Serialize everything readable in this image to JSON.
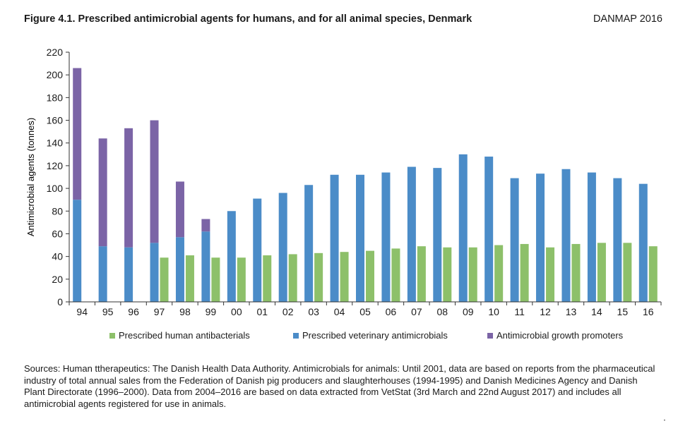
{
  "header": {
    "title": "Figure 4.1. Prescribed antimicrobial agents for humans, and for all animal species, Denmark",
    "report": "DANMAP 2016"
  },
  "chart_data": {
    "type": "bar",
    "ylabel": "Antimicrobial agents (tonnes)",
    "xlabel": "",
    "ylim": [
      0,
      220
    ],
    "yticks": [
      0,
      20,
      40,
      60,
      80,
      100,
      120,
      140,
      160,
      180,
      200,
      220
    ],
    "grid": false,
    "legend_position": "bottom",
    "categories": [
      "94",
      "95",
      "96",
      "97",
      "98",
      "99",
      "00",
      "01",
      "02",
      "03",
      "04",
      "05",
      "06",
      "07",
      "08",
      "09",
      "10",
      "11",
      "12",
      "13",
      "14",
      "15",
      "16"
    ],
    "series": [
      {
        "name": "Prescribed human antibacterials",
        "color": "#8dc06a",
        "values": [
          null,
          null,
          null,
          39,
          41,
          39,
          39,
          41,
          42,
          43,
          44,
          45,
          47,
          49,
          48,
          48,
          50,
          51,
          48,
          51,
          52,
          52,
          49
        ]
      },
      {
        "name": "Prescribed veterinary antimicrobials",
        "color": "#4b8cc8",
        "values": [
          90,
          49,
          48,
          52,
          57,
          62,
          80,
          91,
          96,
          103,
          112,
          112,
          114,
          119,
          118,
          130,
          128,
          109,
          113,
          117,
          114,
          109,
          104
        ]
      },
      {
        "name": "Antimicrobial growth promoters",
        "color": "#7b64a6",
        "stacked_on": "Prescribed veterinary antimicrobials",
        "values": [
          116,
          95,
          105,
          108,
          49,
          11,
          null,
          null,
          null,
          null,
          null,
          null,
          null,
          null,
          null,
          null,
          null,
          null,
          null,
          null,
          null,
          null,
          null
        ]
      }
    ]
  },
  "source_note": "Sources: Human ttherapeutics: The Danish Health Data Authority. Antimicrobials for animals: Until 2001, data are based on reports from the pharmaceutical industry of total annual sales from the Federation of Danish pig producers and slaughterhouses (1994-1995) and Danish Medicines Agency and Danish Plant Directorate (1996–2000). Data from 2004–2016 are based on data extracted from VetStat (3rd March and 22nd August 2017) and includes all antimicrobial agents registered for use in animals."
}
